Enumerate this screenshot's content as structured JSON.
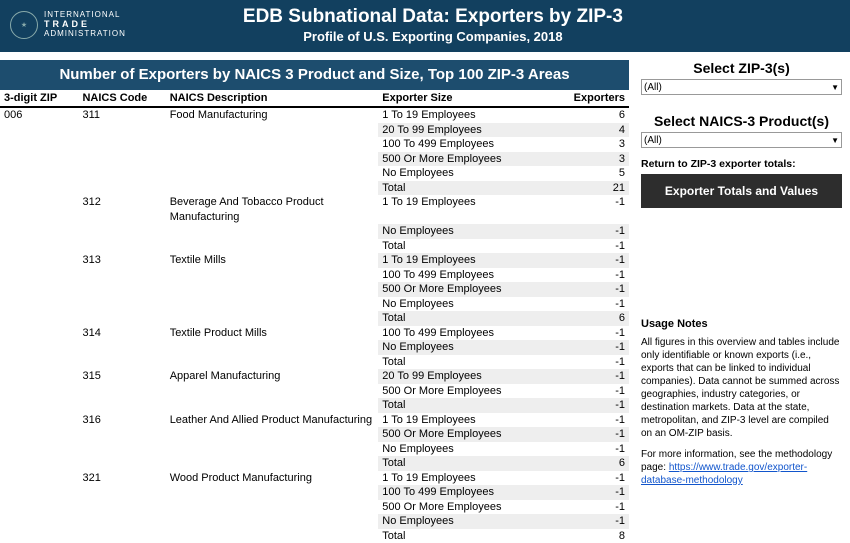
{
  "header": {
    "logo_line1": "INTERNATIONAL",
    "logo_line2": "TRADE",
    "logo_line3": "ADMINISTRATION",
    "title": "EDB Subnational Data: Exporters by ZIP-3",
    "subtitle": "Profile of U.S. Exporting Companies, 2018"
  },
  "table": {
    "title": "Number of Exporters by NAICS 3 Product and Size, Top 100 ZIP-3 Areas",
    "columns": {
      "zip": "3-digit ZIP",
      "naics": "NAICS Code",
      "desc": "NAICS Description",
      "size": "Exporter Size",
      "exp": "Exporters"
    },
    "data": [
      {
        "zip": "006",
        "naics": "311",
        "desc": "Food Manufacturing",
        "rows": [
          {
            "size": "1 To 19 Employees",
            "exp": "6",
            "shade": false
          },
          {
            "size": "20 To 99 Employees",
            "exp": "4",
            "shade": true
          },
          {
            "size": "100 To 499 Employees",
            "exp": "3",
            "shade": false
          },
          {
            "size": "500 Or More Employees",
            "exp": "3",
            "shade": true
          },
          {
            "size": "No Employees",
            "exp": "5",
            "shade": false
          },
          {
            "size": "Total",
            "exp": "21",
            "shade": true
          }
        ]
      },
      {
        "zip": "",
        "naics": "312",
        "desc": "Beverage And Tobacco Product Manufacturing",
        "rows": [
          {
            "size": "1 To 19 Employees",
            "exp": "-1",
            "shade": false
          },
          {
            "size": "No Employees",
            "exp": "-1",
            "shade": true
          },
          {
            "size": "Total",
            "exp": "-1",
            "shade": false
          }
        ]
      },
      {
        "zip": "",
        "naics": "313",
        "desc": "Textile Mills",
        "rows": [
          {
            "size": "1 To 19 Employees",
            "exp": "-1",
            "shade": true
          },
          {
            "size": "100 To 499 Employees",
            "exp": "-1",
            "shade": false
          },
          {
            "size": "500 Or More Employees",
            "exp": "-1",
            "shade": true
          },
          {
            "size": "No Employees",
            "exp": "-1",
            "shade": false
          },
          {
            "size": "Total",
            "exp": "6",
            "shade": true
          }
        ]
      },
      {
        "zip": "",
        "naics": "314",
        "desc": "Textile Product Mills",
        "rows": [
          {
            "size": "100 To 499 Employees",
            "exp": "-1",
            "shade": false
          },
          {
            "size": "No Employees",
            "exp": "-1",
            "shade": true
          },
          {
            "size": "Total",
            "exp": "-1",
            "shade": false
          }
        ]
      },
      {
        "zip": "",
        "naics": "315",
        "desc": "Apparel Manufacturing",
        "rows": [
          {
            "size": "20 To 99 Employees",
            "exp": "-1",
            "shade": true
          },
          {
            "size": "500 Or More Employees",
            "exp": "-1",
            "shade": false
          },
          {
            "size": "Total",
            "exp": "-1",
            "shade": true
          }
        ]
      },
      {
        "zip": "",
        "naics": "316",
        "desc": "Leather And Allied Product Manufacturing",
        "rows": [
          {
            "size": "1 To 19 Employees",
            "exp": "-1",
            "shade": false
          },
          {
            "size": "500 Or More Employees",
            "exp": "-1",
            "shade": true
          },
          {
            "size": "No Employees",
            "exp": "-1",
            "shade": false
          },
          {
            "size": "Total",
            "exp": "6",
            "shade": true
          }
        ]
      },
      {
        "zip": "",
        "naics": "321",
        "desc": "Wood Product Manufacturing",
        "rows": [
          {
            "size": "1 To 19 Employees",
            "exp": "-1",
            "shade": false
          },
          {
            "size": "100 To 499 Employees",
            "exp": "-1",
            "shade": true
          },
          {
            "size": "500 Or More Employees",
            "exp": "-1",
            "shade": false
          },
          {
            "size": "No Employees",
            "exp": "-1",
            "shade": true
          },
          {
            "size": "Total",
            "exp": "8",
            "shade": false
          }
        ]
      }
    ]
  },
  "sidebar": {
    "select_zip_label": "Select ZIP-3(s)",
    "select_zip_value": "(All)",
    "select_naics_label": "Select NAICS-3 Product(s)",
    "select_naics_value": "(All)",
    "return_label": "Return to ZIP-3 exporter totals:",
    "button_label": "Exporter Totals and Values",
    "usage_title": "Usage Notes",
    "usage_p1": "All figures in this overview and tables include only identifiable or known exports (i.e., exports that can be linked to individual companies). Data cannot be summed across geographies, industry categories, or destination markets. Data at the state, metropolitan, and ZIP-3 level are compiled on an OM-ZIP basis.",
    "usage_p2_pre": "For more information, see the methodology page: ",
    "usage_link": "https://www.trade.gov/exporter-database-methodology"
  }
}
